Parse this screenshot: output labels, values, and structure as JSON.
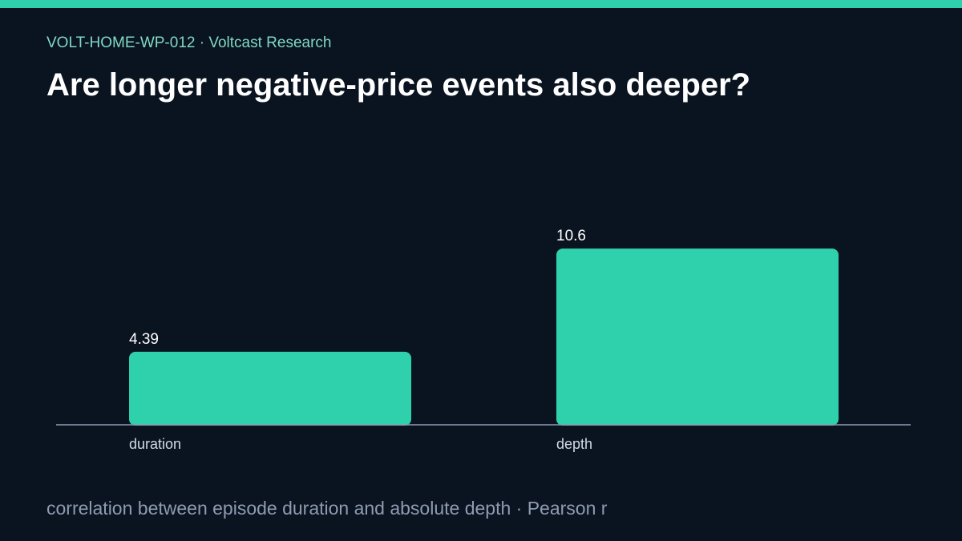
{
  "header": {
    "eyebrow": "VOLT-HOME-WP-012 · Voltcast Research",
    "title": "Are longer negative-price events also deeper?"
  },
  "footer": {
    "note": "correlation between episode duration and absolute depth · Pearson r"
  },
  "colors": {
    "background": "#0a1320",
    "accent": "#2fd1ad",
    "bar": "#2fd1ad",
    "axis": "#8e9bb0",
    "value_label": "#ffffff",
    "tick_label": "#d3dae6"
  },
  "chart_data": {
    "type": "bar",
    "categories": [
      "duration",
      "depth"
    ],
    "values": [
      4.39,
      10.6
    ],
    "value_labels": [
      "4.39",
      "10.6"
    ],
    "title": "",
    "xlabel": "",
    "ylabel": "",
    "ylim": [
      0,
      13.4
    ],
    "grid": false,
    "legend": "none"
  }
}
